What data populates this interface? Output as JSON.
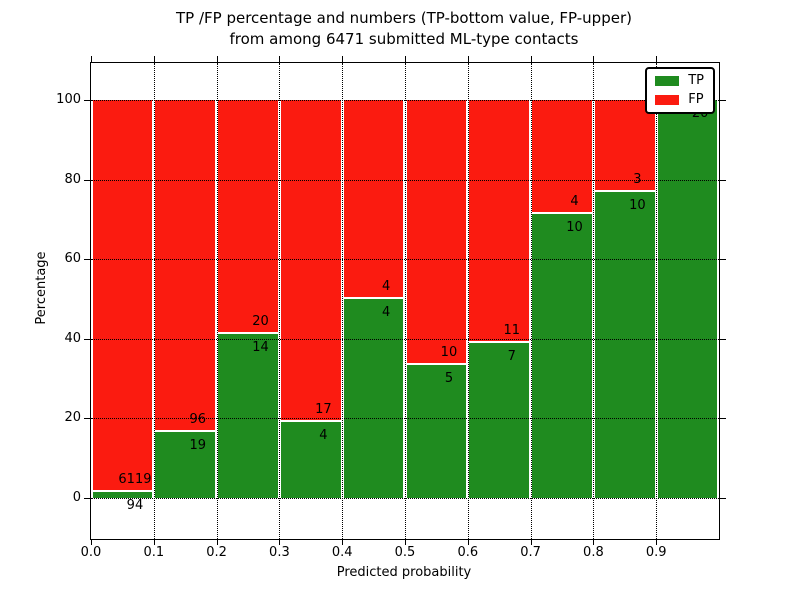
{
  "title": {
    "line1": "TP /FP percentage and numbers (TP-bottom value, FP-upper)",
    "line2": "from among 6471 submitted ML-type contacts"
  },
  "legend": {
    "items": [
      {
        "label": "TP",
        "color": "#1f8b1f"
      },
      {
        "label": "FP",
        "color": "#fb1b10"
      }
    ]
  },
  "chart_data": {
    "type": "bar",
    "subtype": "stacked-percentage-histogram",
    "title": "TP /FP percentage and numbers (TP-bottom value, FP-upper) from among 6471 submitted ML-type contacts",
    "xlabel": "Predicted probability",
    "ylabel": "Percentage",
    "x_ticks": [
      "0.0",
      "0.1",
      "0.2",
      "0.3",
      "0.4",
      "0.5",
      "0.6",
      "0.7",
      "0.8",
      "0.9"
    ],
    "y_ticks": [
      "0",
      "20",
      "40",
      "60",
      "80",
      "100"
    ],
    "xlim": [
      0.0,
      1.0
    ],
    "ylim": [
      -10,
      109
    ],
    "grid": "dotted",
    "legend_position": "upper right",
    "total_contacts": 6471,
    "series": [
      {
        "name": "TP",
        "color": "#1f8b1f",
        "position": "bottom"
      },
      {
        "name": "FP",
        "color": "#fb1b10",
        "position": "top"
      }
    ],
    "bins": [
      {
        "x_range": [
          0.0,
          0.1
        ],
        "tp": 94,
        "fp": 6119
      },
      {
        "x_range": [
          0.1,
          0.2
        ],
        "tp": 19,
        "fp": 96
      },
      {
        "x_range": [
          0.2,
          0.3
        ],
        "tp": 14,
        "fp": 20
      },
      {
        "x_range": [
          0.3,
          0.4
        ],
        "tp": 4,
        "fp": 17
      },
      {
        "x_range": [
          0.4,
          0.5
        ],
        "tp": 4,
        "fp": 4
      },
      {
        "x_range": [
          0.5,
          0.6
        ],
        "tp": 5,
        "fp": 10
      },
      {
        "x_range": [
          0.6,
          0.7
        ],
        "tp": 7,
        "fp": 11
      },
      {
        "x_range": [
          0.7,
          0.8
        ],
        "tp": 10,
        "fp": 4
      },
      {
        "x_range": [
          0.8,
          0.9
        ],
        "tp": 10,
        "fp": 3
      },
      {
        "x_range": [
          0.9,
          1.0
        ],
        "tp": 20,
        "fp": 0
      }
    ]
  }
}
